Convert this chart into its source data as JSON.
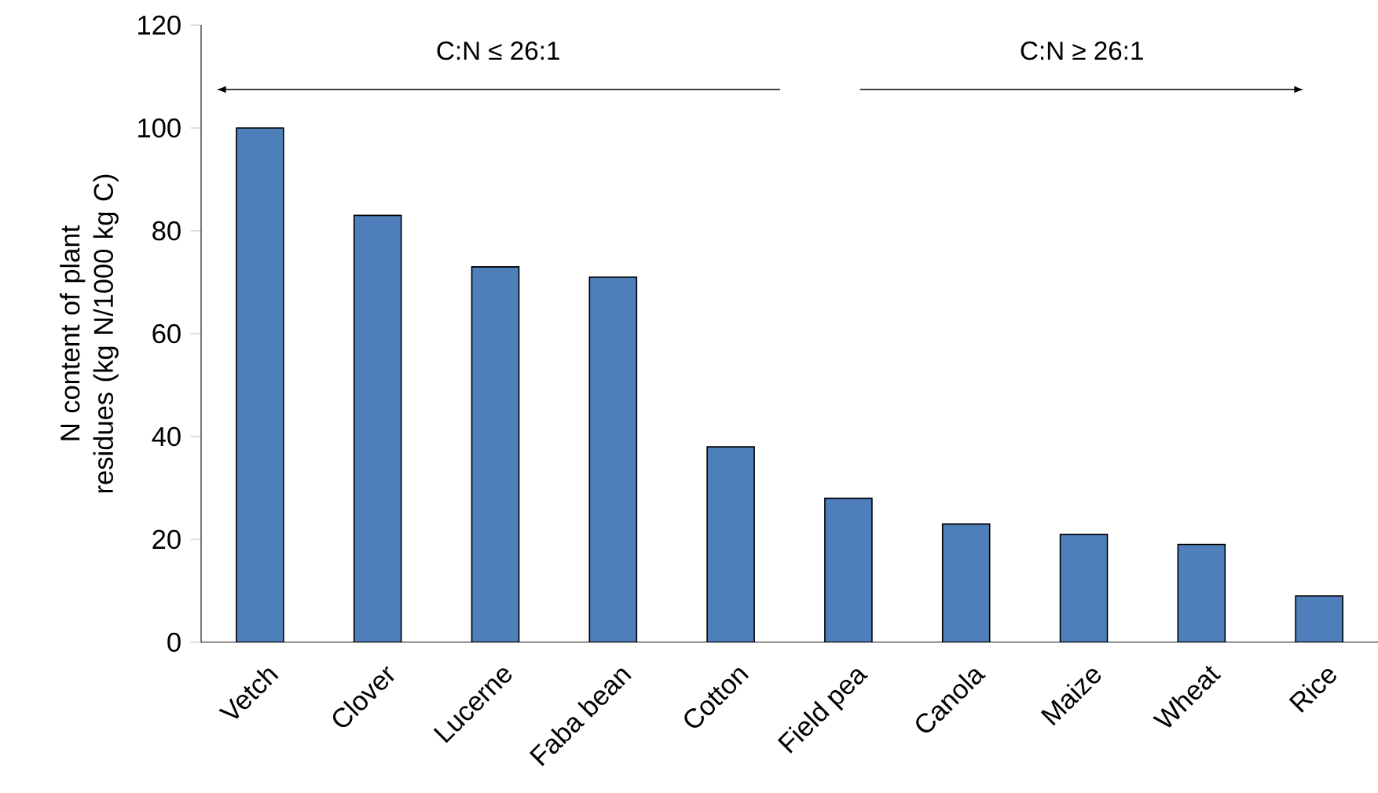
{
  "chart_data": {
    "type": "bar",
    "ylabel": "N content of plant residues (kg N/1000 kg C)",
    "categories": [
      "Vetch",
      "Clover",
      "Lucerne",
      "Faba bean",
      "Cotton",
      "Field pea",
      "Canola",
      "Maize",
      "Wheat",
      "Rice"
    ],
    "values": [
      100,
      83,
      73,
      71,
      38,
      28,
      23,
      21,
      19,
      9
    ],
    "color": "#4f7fba",
    "ylim": [
      0,
      120
    ],
    "yticks": [
      0,
      20,
      40,
      60,
      80,
      100,
      120
    ],
    "grid": false,
    "annotations": [
      "C:N ≤ 26:1",
      "C:N ≥ 26:1"
    ]
  }
}
